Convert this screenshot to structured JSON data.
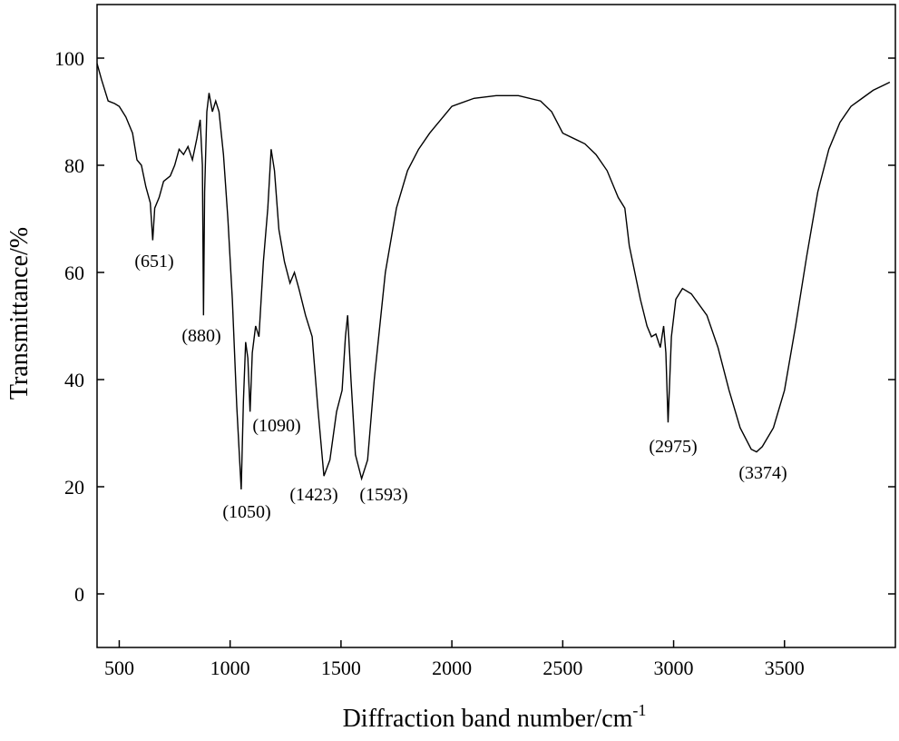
{
  "chart_data": {
    "type": "line",
    "xlabel": {
      "text": "Diffraction band number/cm",
      "superscript": "-1"
    },
    "ylabel": "Transmittance/%",
    "xlim": [
      400,
      4000
    ],
    "ylim": [
      -10,
      110
    ],
    "xticks": [
      500,
      1000,
      1500,
      2000,
      2500,
      3000,
      3500
    ],
    "yticks": [
      0,
      20,
      40,
      60,
      80,
      100
    ],
    "series": [
      {
        "color": "#000000",
        "x": [
          400,
          420,
          450,
          480,
          500,
          530,
          560,
          580,
          600,
          620,
          640,
          651,
          660,
          680,
          700,
          730,
          750,
          770,
          790,
          810,
          830,
          850,
          865,
          875,
          880,
          885,
          895,
          905,
          920,
          935,
          950,
          970,
          990,
          1010,
          1030,
          1050,
          1060,
          1070,
          1080,
          1090,
          1100,
          1115,
          1130,
          1150,
          1170,
          1185,
          1200,
          1220,
          1245,
          1270,
          1290,
          1310,
          1340,
          1370,
          1395,
          1423,
          1450,
          1480,
          1505,
          1520,
          1530,
          1545,
          1565,
          1593,
          1620,
          1650,
          1700,
          1750,
          1800,
          1850,
          1900,
          1950,
          2000,
          2100,
          2200,
          2300,
          2400,
          2450,
          2500,
          2600,
          2650,
          2700,
          2750,
          2780,
          2800,
          2850,
          2880,
          2900,
          2920,
          2940,
          2955,
          2965,
          2975,
          2990,
          3010,
          3040,
          3080,
          3150,
          3200,
          3250,
          3300,
          3350,
          3374,
          3400,
          3450,
          3500,
          3550,
          3600,
          3650,
          3700,
          3750,
          3800,
          3850,
          3900,
          3950,
          3975
        ],
        "values": [
          99,
          96,
          92,
          91.5,
          91,
          89,
          86,
          81,
          80,
          76,
          73,
          66,
          72,
          74,
          77,
          78,
          80,
          83,
          82,
          83.5,
          81,
          85,
          88.5,
          80,
          52,
          75,
          90,
          93.5,
          90,
          92,
          90,
          82,
          70,
          55,
          35,
          19.5,
          36,
          47,
          44,
          34,
          45,
          50,
          48,
          62,
          72,
          83,
          79,
          68,
          62,
          58,
          60,
          57,
          52,
          48,
          35,
          22,
          25,
          34,
          38,
          48,
          52,
          40,
          26,
          21.5,
          25,
          40,
          60,
          72,
          79,
          83,
          86,
          88.5,
          91,
          92.5,
          93,
          93,
          92,
          90,
          86,
          84,
          82,
          79,
          74,
          72,
          65,
          55,
          50,
          48,
          48.5,
          46,
          50,
          45,
          32,
          48,
          55,
          57,
          56,
          52,
          46,
          38,
          31,
          27,
          26.5,
          27.5,
          31,
          38,
          50,
          63,
          75,
          83,
          88,
          91,
          92.5,
          94,
          95,
          95.5
        ]
      }
    ],
    "annotations": [
      "(651)",
      "(880)",
      "(1090)",
      "(1050)",
      "(1423)",
      "(1593)",
      "(2975)",
      "(3374)"
    ]
  }
}
